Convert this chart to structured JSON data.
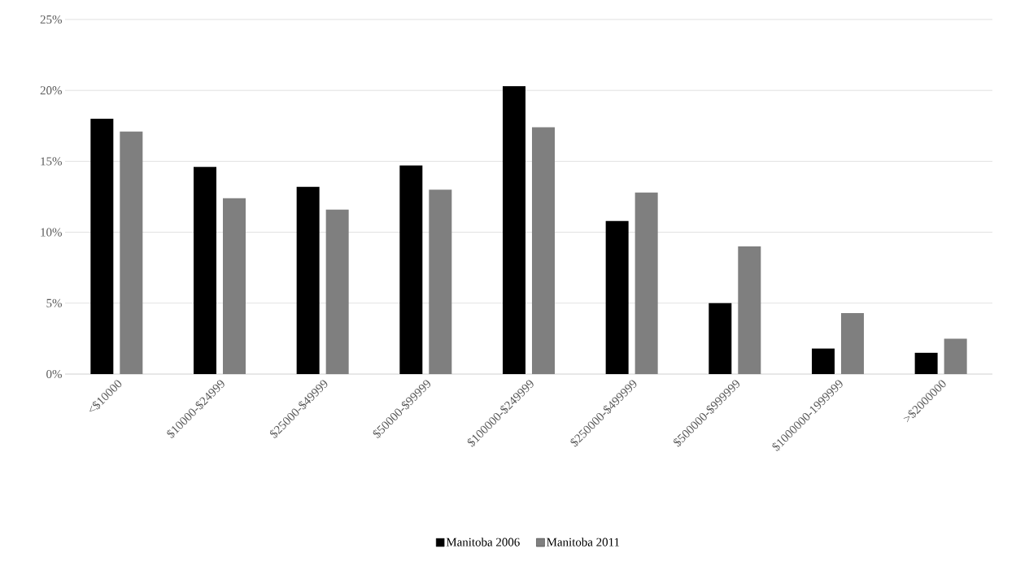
{
  "chart_data": {
    "type": "bar",
    "categories": [
      "<$10000",
      "$10000-$24999",
      "$25000-$49999",
      "$50000-$99999",
      "$100000-$249999",
      "$250000-$499999",
      "$500000-$999999",
      "$1000000-1999999",
      ">$2000000"
    ],
    "series": [
      {
        "name": "Manitoba 2006",
        "color": "#000000",
        "values": [
          18.0,
          14.6,
          13.2,
          14.7,
          20.3,
          10.8,
          5.0,
          1.8,
          1.5
        ]
      },
      {
        "name": "Manitoba 2011",
        "color": "#7f7f7f",
        "values": [
          17.1,
          12.4,
          11.6,
          13.0,
          17.4,
          12.8,
          9.0,
          4.3,
          2.5
        ]
      }
    ],
    "ylim": [
      0,
      25
    ],
    "yticks": [
      {
        "value": 0,
        "label": "0%"
      },
      {
        "value": 5,
        "label": "5%"
      },
      {
        "value": 10,
        "label": "10%"
      },
      {
        "value": 15,
        "label": "15%"
      },
      {
        "value": 20,
        "label": "20%"
      },
      {
        "value": 25,
        "label": "25%"
      }
    ],
    "grid": "y",
    "legend": "bottom"
  }
}
